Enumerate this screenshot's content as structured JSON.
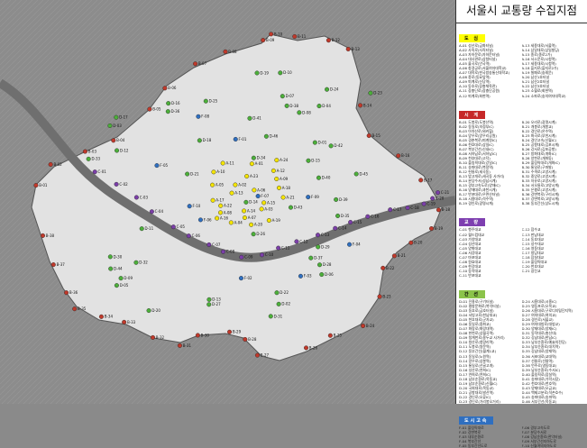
{
  "title": "서울시 교통량 수집지점",
  "colors": {
    "A": "#f4e400",
    "B": "#c0392b",
    "C": "#7b3fa8",
    "D": "#4caf3a",
    "F": "#2f6fc0",
    "river": "#6f6f6f",
    "seoul": "#e4e4e4",
    "outside": "#8a8a8a"
  },
  "sections": [
    {
      "key": "A",
      "header": "도 심",
      "header_bg": "#ffff00",
      "header_fg": "#000",
      "left": [
        "A-01 성산로(금화터널)",
        "A-02 사직로(사직터널)",
        "A-03 자하문로(자하문터널)",
        "A-04 대사관로(삼청터널)",
        "A-05 율곡로(안국역)",
        "A-06 창경궁로(서울여자대학교)",
        "A-07 대학로(한국방송통신대학교)",
        "A-08 종로(동묘앞역)",
        "A-09 퇴계로(신당역)",
        "A-10 동호로(장충체육관)",
        "A-11 장충단로(장충단공원)",
        "A-12 퇴계로(회현역)"
      ],
      "right": [
        "A-13 세종대로(서울역)",
        "A-14 삼일대로(삼일빌딩)",
        "A-15 종로(종로2가)",
        "A-16 서소문로(시청역)",
        "A-17 세종대로(시청역)",
        "A-18 을지로(을지로2가)",
        "A-19 칠패로(숭례문)",
        "A-20 남산1호터널",
        "A-21 남산2호터널",
        "A-22 남산3호터널",
        "A-23 소월로(회현역)",
        "A-24 소파로(숭의여자대학교)"
      ]
    },
    {
      "key": "B",
      "header": "시 계",
      "header_bg": "#c62828",
      "header_fg": "#fff",
      "left": [
        "B-01 도봉로(도봉산역)",
        "B-02 동일로(의정부IC)",
        "B-03 아차산로(워커힐)",
        "B-04 망우로(망우리공원)",
        "B-05 경춘북로(퇴계원IC)",
        "B-06 천호대로(상일IC)",
        "B-07 북부간선(신내IC)",
        "B-08 서하남로(서하남IC)",
        "B-09 천호대로(고덕)",
        "B-10 올림픽대로(강일IC)",
        "B-11 송파대로(복정역)",
        "B-12 헌릉로(세곡동)",
        "B-13 밤고개로(세곡동 사거리)",
        "B-14 분당수서(성남시계)",
        "B-15 경부고속도로(양재IC)",
        "B-16 양재대로(과천시계)",
        "B-17 반포대로(우면산터널)",
        "B-18 시흥대로(석수역)",
        "B-19 경인로(광명시계)"
      ],
      "right": [
        "B-20 오리로(광명시계)",
        "B-21 개봉로(개봉교)",
        "B-22 경인로(온수역)",
        "B-23 화곡로(부천시계)",
        "B-24 경인고속(신월IC)",
        "B-25 공항대로(김포시계)",
        "B-26 강서로(김포공항)",
        "B-27 방화대로(개화IC)",
        "B-28 양천로(개화동)",
        "B-29 올림픽대로(개화IC)",
        "B-30 통일로(구파발)",
        "B-31 수색로(고양시계)",
        "B-32 중앙로(고양시계)",
        "B-33 자유로(고양시계)",
        "B-34 서오릉로(고양시계)",
        "B-35 은평로(고양시계)",
        "B-36 강변북로(구리시계)",
        "B-37 강변북로(고양시계)",
        "B-38 동부간선(상도시계)"
      ]
    },
    {
      "key": "C",
      "header": "교 량",
      "header_bg": "#7e3fb0",
      "header_fg": "#fff",
      "left": [
        "C-01 행주대교",
        "C-02 월드컵대교",
        "C-03 가양대교",
        "C-04 성산대교",
        "C-05 양화대교",
        "C-06 서강대교",
        "C-07 마포대교",
        "C-08 원효대교",
        "C-09 한강대교",
        "C-10 동작대교",
        "C-11 반포대교"
      ],
      "right": [
        "C-12 잠수교",
        "C-13 한남대교",
        "C-14 동호대교",
        "C-15 성수대교",
        "C-16 영동대교",
        "C-17 청담대교",
        "C-18 잠실대교",
        "C-19 올림픽대교",
        "C-20 천호대교",
        "C-21 광진교"
      ]
    },
    {
      "key": "D",
      "header": "간 선",
      "header_bg": "#8bc34a",
      "header_fg": "#000",
      "left": [
        "D-01 진흥로(구기터널)",
        "D-02 평창문화로(북악터널)",
        "D-03 동호로(금호터널)",
        "D-04 서빙고로(한남대교)",
        "D-05 천호대로(군자교)",
        "D-06 동일로(중화교)",
        "D-07 화랑로(화랑대역)",
        "D-08 한천로(상월곡역)",
        "D-09 청계천로(용두교 사거리)",
        "D-10 왕산로(청량리역)",
        "D-11 도봉로(쌍문역)",
        "D-12 동부간선(월계1교)",
        "D-13 동일로(노원역)",
        "D-14 망우로(상봉역)",
        "D-15 통일로(산골고개)",
        "D-16 성산로(연희IC)",
        "D-17 연희로(연희IC)",
        "D-18 남부순환로(목동교)",
        "D-19 남부순환로(신월IC)",
        "D-20 국회대로(목동교)",
        "D-21 공항대로(발산역)",
        "D-22 경인로(오류IC)",
        "D-23 경인로(가리봉오거리)"
      ],
      "right": [
        "D-24 시흥대로(시흥IC)",
        "D-25 영등포로(오목교)",
        "D-26 시흥대로(구로디지털단지역)",
        "D-27 여의대로(여의교)",
        "D-28 경인로(서울교)",
        "D-29 여의대방로(대방교)",
        "D-30 양재대로(양재IC)",
        "D-31 동작대로(총신대)",
        "D-32 강남대로(한남IC)",
        "D-33 남부순환로(예술의전당)",
        "D-34 남부순환로(대치역)",
        "D-35 강남대로(양재역)",
        "D-36 서초대로(교대역)",
        "D-37 선릉로(선릉역)",
        "D-38 언주로(영동대교)",
        "D-39 남부순환로(수서IC)",
        "D-40 올림픽로(잠실역)",
        "D-41 송파대로(가락시장)",
        "D-42 천호대로(천호역)",
        "D-43 양재대로(오금교)",
        "D-44 백제고분로(석촌호수)",
        "D-45 송파대로(송파역)",
        "D-46 서부간선(목동교)"
      ]
    },
    {
      "key": "F",
      "header": "도시고속",
      "header_bg": "#2f6fc0",
      "header_fg": "#fff",
      "left": [
        "F-01 올림픽대로",
        "F-02 강변북로",
        "F-03 내부순환로",
        "F-04 북부간선",
        "F-05 동부간선도로"
      ],
      "right": [
        "F-06 경부고속도로",
        "F-07 분당수서로",
        "F-08 강남순환로(관악터널)",
        "F-09 서부간선지하도로",
        "F-10 신월여의지하도로"
      ]
    }
  ]
}
